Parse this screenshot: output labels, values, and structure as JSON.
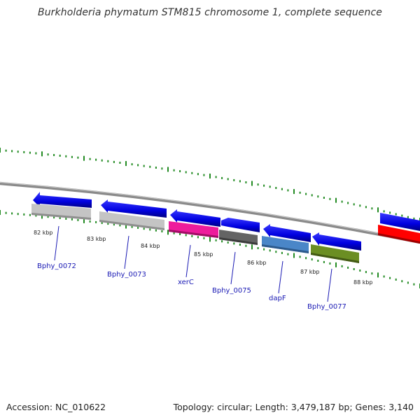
{
  "title": "Burkholderia phymatum STM815 chromosome 1, complete sequence",
  "footer": {
    "accession": "Accession: NC_010622",
    "summary": "Topology: circular; Length: 3,479,187 bp; Genes: 3,140"
  },
  "scale": {
    "tick_color": "#228b22",
    "kbp_labels": [
      "82 kbp",
      "83 kbp",
      "84 kbp",
      "85 kbp",
      "86 kbp",
      "87 kbp",
      "88 kbp"
    ]
  },
  "genes": [
    {
      "name": "Bphy_0072",
      "color": "#c0c0c0",
      "icon": "arrow-left"
    },
    {
      "name": "Bphy_0073",
      "color": "#c0c0c0",
      "icon": "arrow-left"
    },
    {
      "name": "xerC",
      "color": "#ee1c9c",
      "icon": "arrow-left"
    },
    {
      "name": "Bphy_0075",
      "color": "#606060",
      "icon": "arrow-left"
    },
    {
      "name": "dapF",
      "color": "#4a86c8",
      "icon": "arrow-left"
    },
    {
      "name": "Bphy_0077",
      "color": "#6b8e23",
      "icon": "arrow-left"
    },
    {
      "name": "",
      "color": "#ff0000",
      "icon": "arrow-right"
    }
  ],
  "colors": {
    "backbone": "#888888",
    "arrow_blue": "#0000ee",
    "label_blue": "#1a1ab4"
  }
}
